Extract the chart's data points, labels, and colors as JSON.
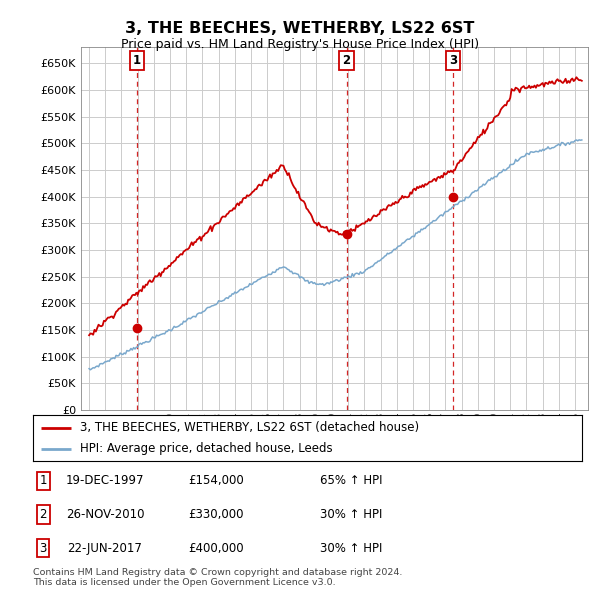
{
  "title": "3, THE BEECHES, WETHERBY, LS22 6ST",
  "subtitle": "Price paid vs. HM Land Registry's House Price Index (HPI)",
  "ylabel_ticks": [
    "£0",
    "£50K",
    "£100K",
    "£150K",
    "£200K",
    "£250K",
    "£300K",
    "£350K",
    "£400K",
    "£450K",
    "£500K",
    "£550K",
    "£600K",
    "£650K"
  ],
  "ytick_values": [
    0,
    50000,
    100000,
    150000,
    200000,
    250000,
    300000,
    350000,
    400000,
    450000,
    500000,
    550000,
    600000,
    650000
  ],
  "ylim": [
    0,
    680000
  ],
  "sale_year_floats": [
    1997.96,
    2010.9,
    2017.47
  ],
  "sale_prices": [
    154000,
    330000,
    400000
  ],
  "sale_labels": [
    "1",
    "2",
    "3"
  ],
  "legend_line1": "3, THE BEECHES, WETHERBY, LS22 6ST (detached house)",
  "legend_line2": "HPI: Average price, detached house, Leeds",
  "table_rows": [
    [
      "1",
      "19-DEC-1997",
      "£154,000",
      "65% ↑ HPI"
    ],
    [
      "2",
      "26-NOV-2010",
      "£330,000",
      "30% ↑ HPI"
    ],
    [
      "3",
      "22-JUN-2017",
      "£400,000",
      "30% ↑ HPI"
    ]
  ],
  "footer": "Contains HM Land Registry data © Crown copyright and database right 2024.\nThis data is licensed under the Open Government Licence v3.0.",
  "line_color_red": "#cc0000",
  "line_color_blue": "#7aa8cc",
  "dashed_color": "#cc0000",
  "background_color": "#ffffff",
  "grid_color": "#cccccc",
  "xlim_left": 1994.5,
  "xlim_right": 2025.8
}
